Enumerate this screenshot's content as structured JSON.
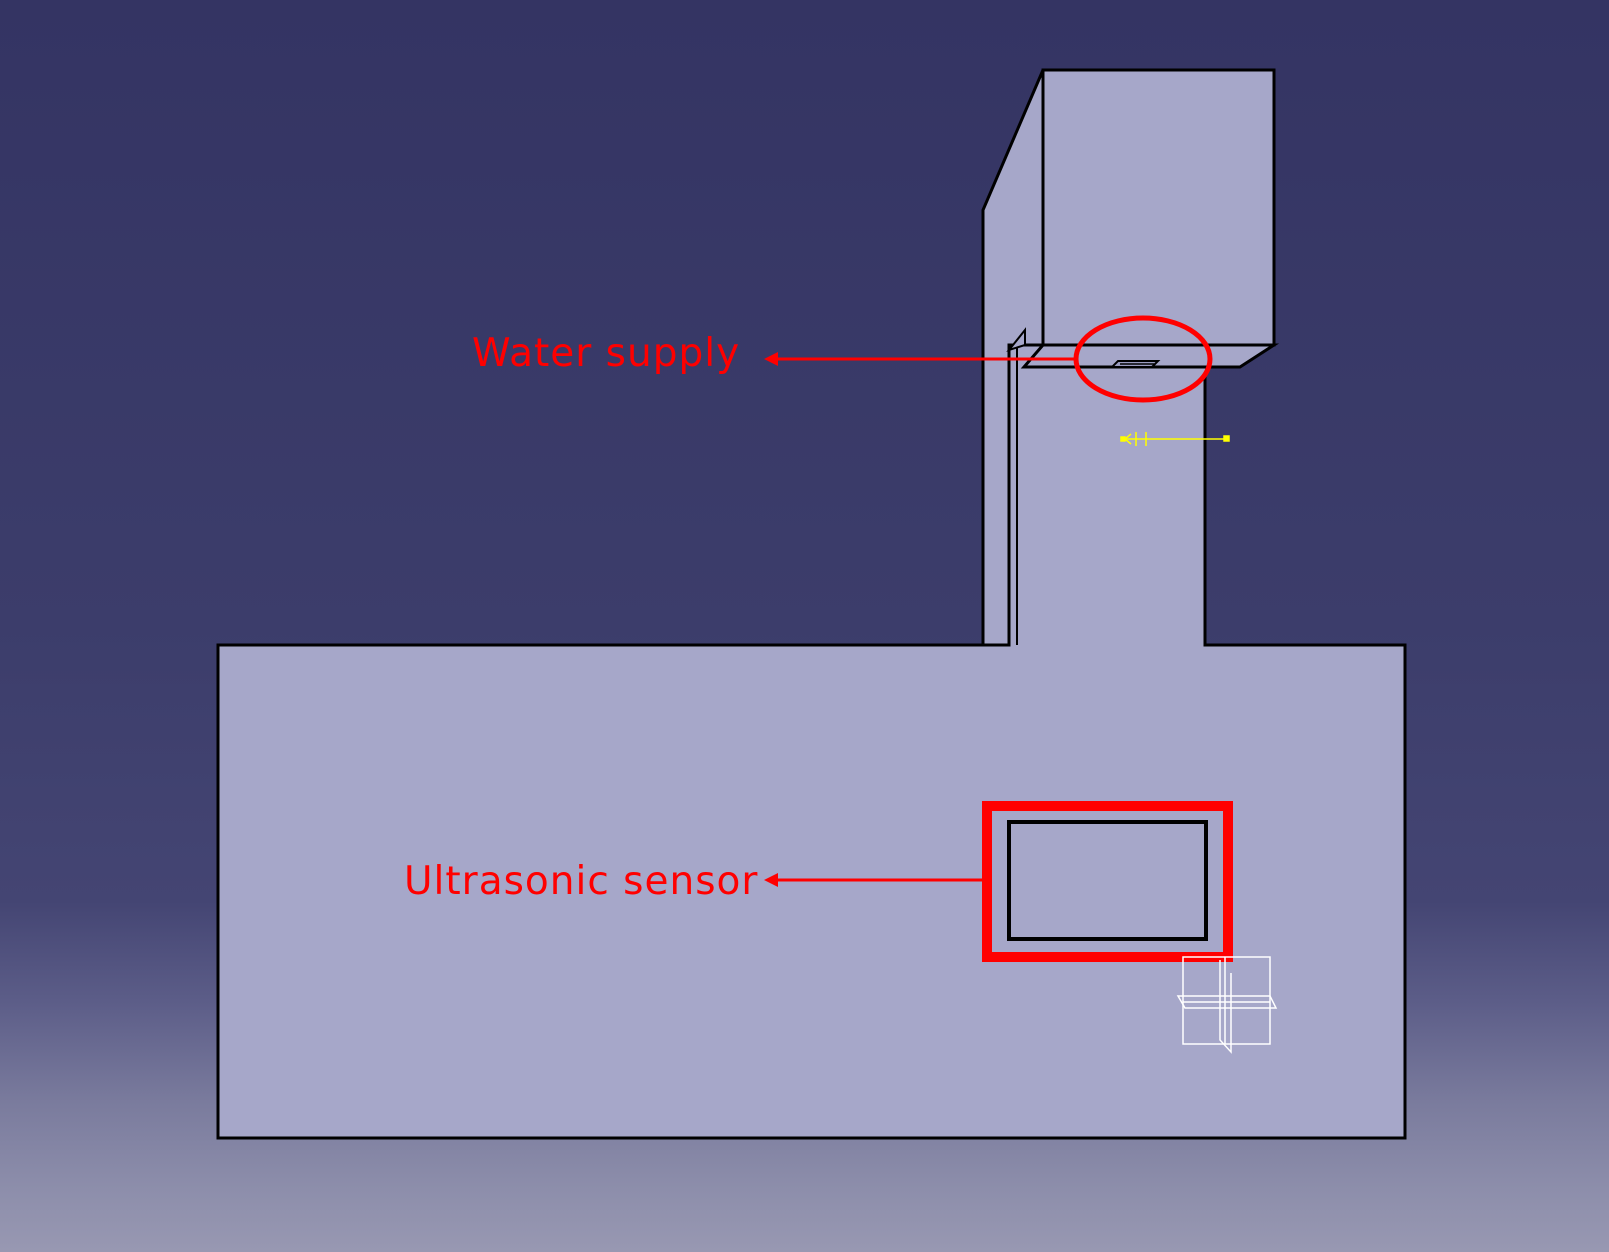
{
  "annotations": {
    "water_supply": "Water supply",
    "ultrasonic_sensor": "Ultrasonic sensor"
  },
  "colors": {
    "background_top": "#343463",
    "background_bottom": "#9898b2",
    "part_fill": "#a6a7c9",
    "edge": "#000000",
    "annotation": "#ff0000",
    "axis_marker": "#ffff00",
    "compass": "#ffffff"
  }
}
